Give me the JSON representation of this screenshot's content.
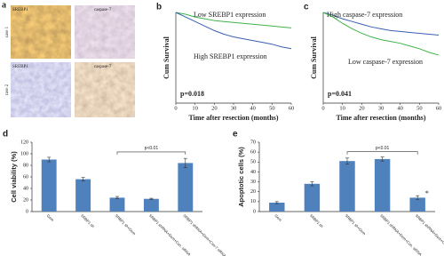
{
  "image_panel": {
    "panel": "a",
    "rows": [
      "case 1",
      "case 2"
    ],
    "images": [
      {
        "label": "SREBP1"
      },
      {
        "label": "caspase-7"
      },
      {
        "label": "SREBP1"
      },
      {
        "label": "caspase-7"
      }
    ]
  },
  "chart_data": [
    {
      "type": "line",
      "panel": "b",
      "xlabel": "Time after resection (months)",
      "ylabel": "Cum Survival",
      "x": [
        0,
        5,
        10,
        15,
        20,
        25,
        30,
        35,
        40,
        45,
        50,
        55,
        60
      ],
      "series": [
        {
          "name": "Low SREBP1 expression",
          "color": "#3fb24a",
          "values": [
            1.0,
            0.98,
            0.95,
            0.93,
            0.91,
            0.9,
            0.89,
            0.88,
            0.87,
            0.86,
            0.85,
            0.84,
            0.83
          ]
        },
        {
          "name": "High SREBP1 expression",
          "color": "#3a5fb0",
          "values": [
            1.0,
            0.95,
            0.9,
            0.85,
            0.8,
            0.76,
            0.73,
            0.71,
            0.69,
            0.67,
            0.65,
            0.62,
            0.6
          ]
        }
      ],
      "annotation": "p=0.018",
      "xlim": [
        0,
        60
      ],
      "xticks": [
        0,
        10,
        20,
        30,
        40,
        50,
        60
      ],
      "ylim": [
        0,
        1
      ]
    },
    {
      "type": "line",
      "panel": "c",
      "xlabel": "Time after resection (months)",
      "ylabel": "Cum Survival",
      "x": [
        0,
        5,
        10,
        15,
        20,
        25,
        30,
        35,
        40,
        45,
        50,
        55,
        60
      ],
      "series": [
        {
          "name": "High caspase-7 expression",
          "color": "#3a5fb0",
          "values": [
            1.0,
            0.97,
            0.93,
            0.9,
            0.87,
            0.84,
            0.82,
            0.8,
            0.79,
            0.78,
            0.77,
            0.76,
            0.75
          ]
        },
        {
          "name": "Low caspase-7 expression",
          "color": "#3fb24a",
          "values": [
            1.0,
            0.95,
            0.88,
            0.82,
            0.77,
            0.73,
            0.7,
            0.68,
            0.66,
            0.63,
            0.6,
            0.56,
            0.53
          ]
        }
      ],
      "annotation": "p=0.041",
      "xlim": [
        0,
        60
      ],
      "xticks": [
        0,
        10,
        20,
        30,
        40,
        50,
        60
      ],
      "ylim": [
        0,
        1
      ]
    },
    {
      "type": "bar",
      "panel": "d",
      "ylabel": "Cell viability (%)",
      "categories": [
        "Gem",
        "SRBP1 sh",
        "SRBP1 sh+Gem",
        "SRBP1 shRNA+Gem+Con. siRNA",
        "SRBP1 shRNA+Gem+Cas-7 siRNA"
      ],
      "values": [
        90,
        56,
        24,
        22,
        84
      ],
      "errors": [
        4,
        3,
        2,
        1,
        8
      ],
      "color": "#4f81bd",
      "annotation": "p<0.01",
      "ylim": [
        0,
        120
      ],
      "yticks": [
        0,
        20,
        40,
        60,
        80,
        100,
        120
      ]
    },
    {
      "type": "bar",
      "panel": "e",
      "ylabel": "Apoptotic cells (%)",
      "categories": [
        "Gem",
        "SRBP1 sh",
        "SRBP1 sh+Gem",
        "SRBP1 shRNA+Gem+Con. siRNA",
        "SRBP1 shRNA+Gem+Cas-7 siRNA"
      ],
      "values": [
        9,
        28,
        51,
        53,
        14
      ],
      "errors": [
        1,
        2,
        3,
        2,
        2
      ],
      "color": "#4f81bd",
      "annotation": "p<0.01",
      "marker": "*",
      "ylim": [
        0,
        70
      ],
      "yticks": [
        0,
        10,
        20,
        30,
        40,
        50,
        60,
        70
      ]
    }
  ]
}
